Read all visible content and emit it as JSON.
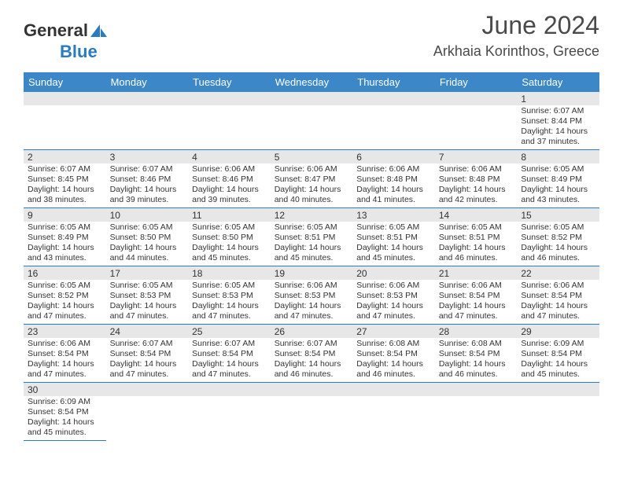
{
  "brand": {
    "part1": "General",
    "part2": "Blue"
  },
  "title": "June 2024",
  "location": "Arkhaia Korinthos, Greece",
  "colors": {
    "header_bg": "#3b87c8",
    "header_text": "#ffffff",
    "grey_band": "#e7e7e7",
    "rule": "#2a7bbf",
    "body_text": "#333333",
    "title_text": "#4a4a4a",
    "brand_blue": "#2a7bbf"
  },
  "weekdays": [
    "Sunday",
    "Monday",
    "Tuesday",
    "Wednesday",
    "Thursday",
    "Friday",
    "Saturday"
  ],
  "days": {
    "1": {
      "sunrise": "Sunrise: 6:07 AM",
      "sunset": "Sunset: 8:44 PM",
      "day1": "Daylight: 14 hours",
      "day2": "and 37 minutes."
    },
    "2": {
      "sunrise": "Sunrise: 6:07 AM",
      "sunset": "Sunset: 8:45 PM",
      "day1": "Daylight: 14 hours",
      "day2": "and 38 minutes."
    },
    "3": {
      "sunrise": "Sunrise: 6:07 AM",
      "sunset": "Sunset: 8:46 PM",
      "day1": "Daylight: 14 hours",
      "day2": "and 39 minutes."
    },
    "4": {
      "sunrise": "Sunrise: 6:06 AM",
      "sunset": "Sunset: 8:46 PM",
      "day1": "Daylight: 14 hours",
      "day2": "and 39 minutes."
    },
    "5": {
      "sunrise": "Sunrise: 6:06 AM",
      "sunset": "Sunset: 8:47 PM",
      "day1": "Daylight: 14 hours",
      "day2": "and 40 minutes."
    },
    "6": {
      "sunrise": "Sunrise: 6:06 AM",
      "sunset": "Sunset: 8:48 PM",
      "day1": "Daylight: 14 hours",
      "day2": "and 41 minutes."
    },
    "7": {
      "sunrise": "Sunrise: 6:06 AM",
      "sunset": "Sunset: 8:48 PM",
      "day1": "Daylight: 14 hours",
      "day2": "and 42 minutes."
    },
    "8": {
      "sunrise": "Sunrise: 6:05 AM",
      "sunset": "Sunset: 8:49 PM",
      "day1": "Daylight: 14 hours",
      "day2": "and 43 minutes."
    },
    "9": {
      "sunrise": "Sunrise: 6:05 AM",
      "sunset": "Sunset: 8:49 PM",
      "day1": "Daylight: 14 hours",
      "day2": "and 43 minutes."
    },
    "10": {
      "sunrise": "Sunrise: 6:05 AM",
      "sunset": "Sunset: 8:50 PM",
      "day1": "Daylight: 14 hours",
      "day2": "and 44 minutes."
    },
    "11": {
      "sunrise": "Sunrise: 6:05 AM",
      "sunset": "Sunset: 8:50 PM",
      "day1": "Daylight: 14 hours",
      "day2": "and 45 minutes."
    },
    "12": {
      "sunrise": "Sunrise: 6:05 AM",
      "sunset": "Sunset: 8:51 PM",
      "day1": "Daylight: 14 hours",
      "day2": "and 45 minutes."
    },
    "13": {
      "sunrise": "Sunrise: 6:05 AM",
      "sunset": "Sunset: 8:51 PM",
      "day1": "Daylight: 14 hours",
      "day2": "and 45 minutes."
    },
    "14": {
      "sunrise": "Sunrise: 6:05 AM",
      "sunset": "Sunset: 8:51 PM",
      "day1": "Daylight: 14 hours",
      "day2": "and 46 minutes."
    },
    "15": {
      "sunrise": "Sunrise: 6:05 AM",
      "sunset": "Sunset: 8:52 PM",
      "day1": "Daylight: 14 hours",
      "day2": "and 46 minutes."
    },
    "16": {
      "sunrise": "Sunrise: 6:05 AM",
      "sunset": "Sunset: 8:52 PM",
      "day1": "Daylight: 14 hours",
      "day2": "and 47 minutes."
    },
    "17": {
      "sunrise": "Sunrise: 6:05 AM",
      "sunset": "Sunset: 8:53 PM",
      "day1": "Daylight: 14 hours",
      "day2": "and 47 minutes."
    },
    "18": {
      "sunrise": "Sunrise: 6:05 AM",
      "sunset": "Sunset: 8:53 PM",
      "day1": "Daylight: 14 hours",
      "day2": "and 47 minutes."
    },
    "19": {
      "sunrise": "Sunrise: 6:06 AM",
      "sunset": "Sunset: 8:53 PM",
      "day1": "Daylight: 14 hours",
      "day2": "and 47 minutes."
    },
    "20": {
      "sunrise": "Sunrise: 6:06 AM",
      "sunset": "Sunset: 8:53 PM",
      "day1": "Daylight: 14 hours",
      "day2": "and 47 minutes."
    },
    "21": {
      "sunrise": "Sunrise: 6:06 AM",
      "sunset": "Sunset: 8:54 PM",
      "day1": "Daylight: 14 hours",
      "day2": "and 47 minutes."
    },
    "22": {
      "sunrise": "Sunrise: 6:06 AM",
      "sunset": "Sunset: 8:54 PM",
      "day1": "Daylight: 14 hours",
      "day2": "and 47 minutes."
    },
    "23": {
      "sunrise": "Sunrise: 6:06 AM",
      "sunset": "Sunset: 8:54 PM",
      "day1": "Daylight: 14 hours",
      "day2": "and 47 minutes."
    },
    "24": {
      "sunrise": "Sunrise: 6:07 AM",
      "sunset": "Sunset: 8:54 PM",
      "day1": "Daylight: 14 hours",
      "day2": "and 47 minutes."
    },
    "25": {
      "sunrise": "Sunrise: 6:07 AM",
      "sunset": "Sunset: 8:54 PM",
      "day1": "Daylight: 14 hours",
      "day2": "and 47 minutes."
    },
    "26": {
      "sunrise": "Sunrise: 6:07 AM",
      "sunset": "Sunset: 8:54 PM",
      "day1": "Daylight: 14 hours",
      "day2": "and 46 minutes."
    },
    "27": {
      "sunrise": "Sunrise: 6:08 AM",
      "sunset": "Sunset: 8:54 PM",
      "day1": "Daylight: 14 hours",
      "day2": "and 46 minutes."
    },
    "28": {
      "sunrise": "Sunrise: 6:08 AM",
      "sunset": "Sunset: 8:54 PM",
      "day1": "Daylight: 14 hours",
      "day2": "and 46 minutes."
    },
    "29": {
      "sunrise": "Sunrise: 6:09 AM",
      "sunset": "Sunset: 8:54 PM",
      "day1": "Daylight: 14 hours",
      "day2": "and 45 minutes."
    },
    "30": {
      "sunrise": "Sunrise: 6:09 AM",
      "sunset": "Sunset: 8:54 PM",
      "day1": "Daylight: 14 hours",
      "day2": "and 45 minutes."
    }
  },
  "layout": {
    "first_weekday_index": 6,
    "num_days": 30,
    "cell_fontsize_pt": 8,
    "header_fontsize_pt": 10
  }
}
